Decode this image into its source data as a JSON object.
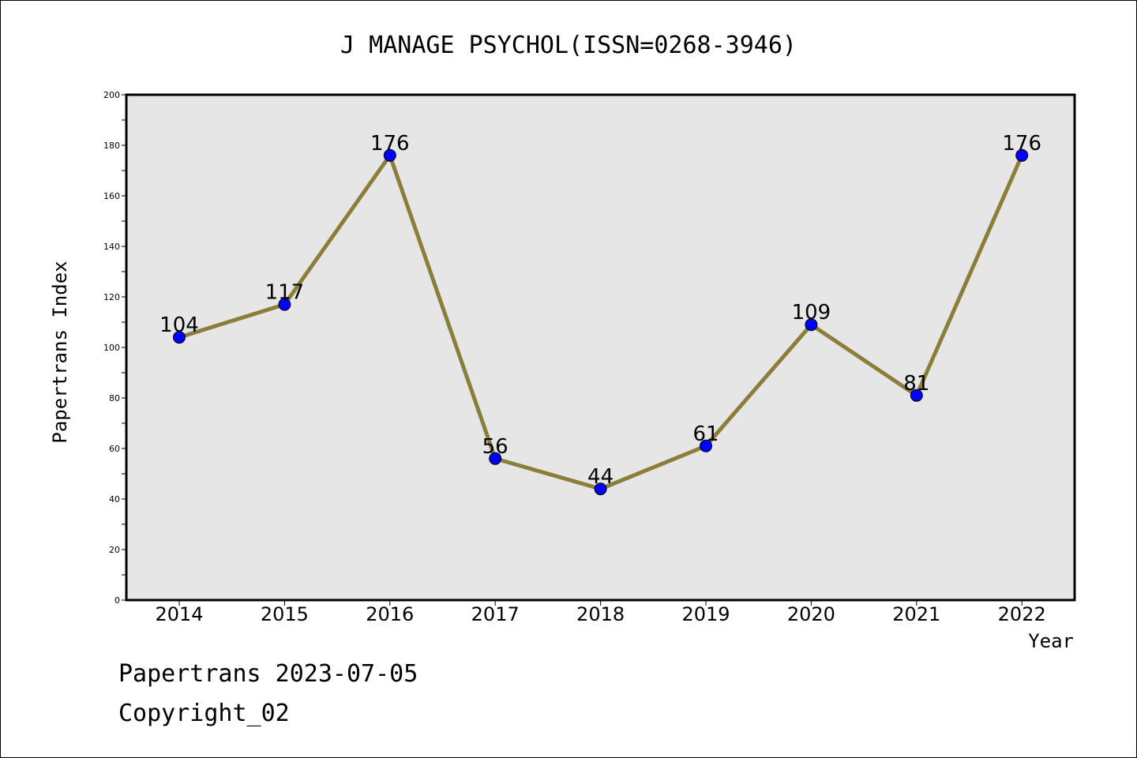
{
  "chart_data": {
    "type": "line",
    "title": "J MANAGE PSYCHOL(ISSN=0268-3946)",
    "xlabel": "Year",
    "ylabel": "Papertrans Index",
    "categories": [
      "2014",
      "2015",
      "2016",
      "2017",
      "2018",
      "2019",
      "2020",
      "2021",
      "2022"
    ],
    "values": [
      104,
      117,
      176,
      56,
      44,
      61,
      109,
      81,
      176
    ],
    "ylim": [
      0,
      200
    ],
    "yticks": [
      0,
      20,
      40,
      60,
      80,
      100,
      120,
      140,
      160,
      180,
      200
    ],
    "grid": false,
    "line_color": "#8b7d3a",
    "marker_color": "#0000ff",
    "plot_background": "#e6e6e6"
  },
  "footer": {
    "line1": "Papertrans 2023-07-05",
    "line2": "Copyright_02"
  }
}
